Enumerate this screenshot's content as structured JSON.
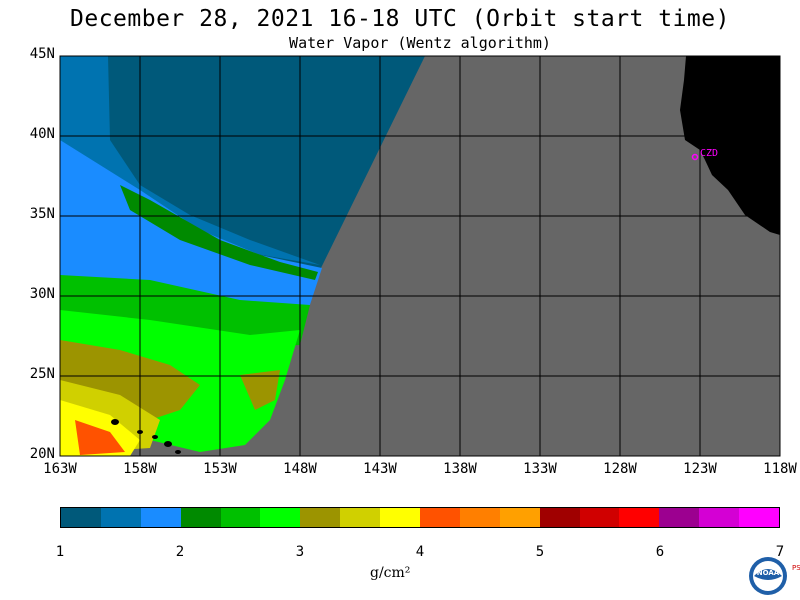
{
  "title": "December 28, 2021  16-18 UTC  (Orbit start time)",
  "subtitle": "Water Vapor (Wentz algorithm)",
  "map": {
    "lat_labels": [
      "45N",
      "40N",
      "35N",
      "30N",
      "25N",
      "20N"
    ],
    "lon_labels": [
      "163W",
      "158W",
      "153W",
      "148W",
      "143W",
      "138W",
      "133W",
      "128W",
      "123W",
      "118W"
    ],
    "station_label": "CZD",
    "colors": {
      "no_data": "#666666",
      "land": "#000000",
      "station": "#ff00ff"
    }
  },
  "colorbar": {
    "colors": [
      "#00597a",
      "#0073b0",
      "#1a8cff",
      "#008a00",
      "#00c000",
      "#00ff00",
      "#9c9400",
      "#d0d000",
      "#ffff00",
      "#ff5200",
      "#ff7f00",
      "#ffa000",
      "#a00000",
      "#d00000",
      "#ff0000",
      "#9c0090",
      "#d400d4",
      "#ff00ff"
    ],
    "ticks": [
      "1",
      "2",
      "3",
      "4",
      "5",
      "6",
      "7"
    ],
    "units": "g/cm²"
  },
  "logo": {
    "text": "NOAA",
    "side_text": "PSL"
  }
}
